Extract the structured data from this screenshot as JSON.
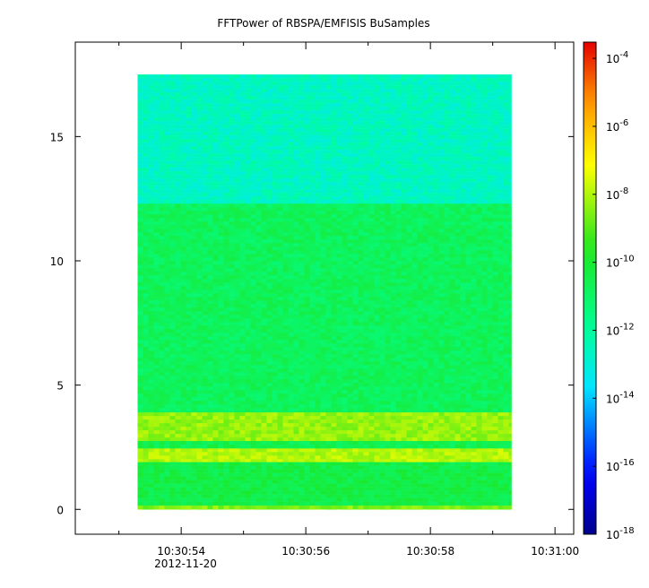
{
  "chart_data": {
    "type": "heatmap",
    "title": "FFTPower of RBSPA/EMFISIS  BuSamples",
    "xlabel": "",
    "ylabel": "",
    "date_label": "2012-11-20",
    "x_ticks": [
      "10:30:54",
      "10:30:56",
      "10:30:58",
      "10:31:00"
    ],
    "x_minor_ticks": [
      "10:30:53",
      "10:30:55",
      "10:30:57",
      "10:30:59"
    ],
    "x_range": [
      "10:30:52.3",
      "10:31:00.3"
    ],
    "data_time_range": [
      "10:30:53.3",
      "10:30:59.3"
    ],
    "y_ticks": [
      0,
      5,
      10,
      15
    ],
    "ylim": [
      -1,
      18.8
    ],
    "data_freq_range": [
      0,
      17.5
    ],
    "colorbar": {
      "scale": "log",
      "range": [
        1e-18,
        0.0003
      ],
      "tick_labels": [
        {
          "base": "10",
          "exp": "-4",
          "value": 0.0001
        },
        {
          "base": "10",
          "exp": "-6",
          "value": 1e-06
        },
        {
          "base": "10",
          "exp": "-8",
          "value": 1e-08
        },
        {
          "base": "10",
          "exp": "-10",
          "value": 1e-10
        },
        {
          "base": "10",
          "exp": "-12",
          "value": 1e-12
        },
        {
          "base": "10",
          "exp": "-14",
          "value": 1e-14
        },
        {
          "base": "10",
          "exp": "-16",
          "value": 1e-16
        },
        {
          "base": "10",
          "exp": "-18",
          "value": 1e-18
        }
      ],
      "colormap": "rainbow"
    },
    "bands": [
      {
        "freq": [
          12.3,
          17.5
        ],
        "log_power": -12.6
      },
      {
        "freq": [
          3.9,
          12.3
        ],
        "log_power": -10.8
      },
      {
        "freq": [
          2.75,
          3.9
        ],
        "log_power": -8.3
      },
      {
        "freq": [
          2.45,
          2.75
        ],
        "log_power": -10.6
      },
      {
        "freq": [
          1.9,
          2.45
        ],
        "log_power": -8.0
      },
      {
        "freq": [
          0.15,
          1.9
        ],
        "log_power": -10.4
      },
      {
        "freq": [
          0.0,
          0.15
        ],
        "log_power": -8.5
      }
    ]
  }
}
